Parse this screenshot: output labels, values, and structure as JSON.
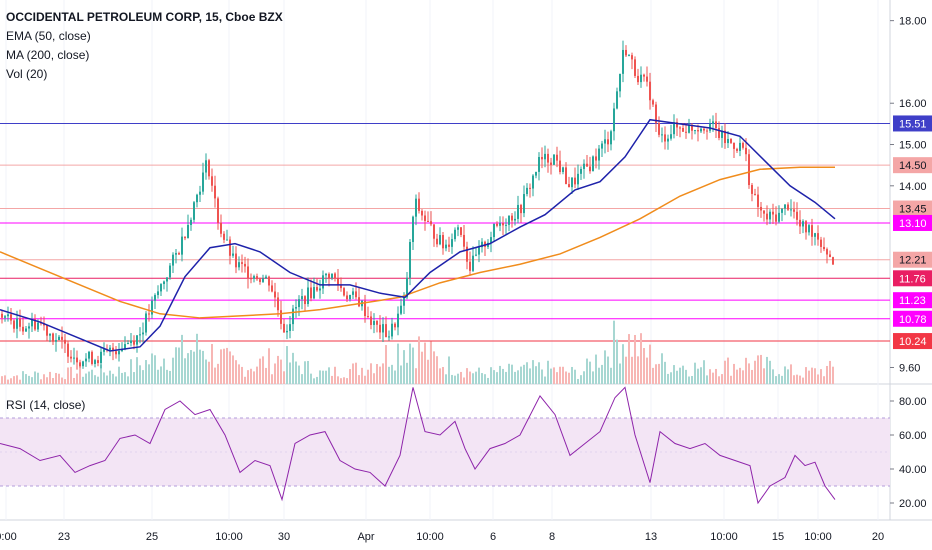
{
  "header": {
    "title": "OCCIDENTAL PETROLEUM CORP, 15, Cboe BZX",
    "indicators": [
      "EMA (50, close)",
      "MA (200, close)",
      "Vol (20)"
    ]
  },
  "rsi": {
    "label": "RSI (14, close)",
    "upper": 70,
    "lower": 30,
    "ticks": [
      "80.00",
      "60.00",
      "40.00",
      "20.00"
    ]
  },
  "colors": {
    "up": "#26a69a",
    "down": "#ef5350",
    "ema": "#1e22aa",
    "ma": "#f08c1c",
    "rsi": "#8e24aa",
    "rsi_band": "#f3e5f5"
  },
  "chart_data": {
    "type": "candlestick",
    "title": "OCCIDENTAL PETROLEUM CORP, 15, Cboe BZX",
    "price_range": [
      9.2,
      18.5
    ],
    "price_ticks": [
      "18.00",
      "16.00",
      "15.00",
      "14.00",
      "9.60"
    ],
    "time_labels": [
      "0:00",
      "23",
      "25",
      "10:00",
      "30",
      "Apr",
      "10:00",
      "6",
      "8",
      "13",
      "10:00",
      "15",
      "10:00",
      "20"
    ],
    "horizontal_lines": [
      {
        "value": 15.51,
        "label": "15.51",
        "color": "#3f3fc8"
      },
      {
        "value": 14.5,
        "label": "14.50",
        "color": "#f4a6a6"
      },
      {
        "value": 13.45,
        "label": "13.45",
        "color": "#f4a6a6"
      },
      {
        "value": 13.1,
        "label": "13.10",
        "color": "#ff00ff"
      },
      {
        "value": 12.21,
        "label": "12.21",
        "color": "#f4a6a6"
      },
      {
        "value": 11.76,
        "label": "11.76",
        "color": "#e91e63"
      },
      {
        "value": 11.23,
        "label": "11.23",
        "color": "#ff00ff"
      },
      {
        "value": 10.78,
        "label": "10.78",
        "color": "#ff00ff"
      },
      {
        "value": 10.24,
        "label": "10.24",
        "color": "#f23645"
      }
    ],
    "price_path": [
      [
        0,
        10.9
      ],
      [
        20,
        10.6
      ],
      [
        40,
        10.7
      ],
      [
        60,
        10.2
      ],
      [
        80,
        9.8
      ],
      [
        100,
        9.85
      ],
      [
        120,
        10.1
      ],
      [
        140,
        10.4
      ],
      [
        160,
        11.5
      ],
      [
        180,
        12.5
      ],
      [
        195,
        13.6
      ],
      [
        208,
        14.6
      ],
      [
        220,
        13.0
      ],
      [
        235,
        12.1
      ],
      [
        250,
        11.9
      ],
      [
        270,
        11.7
      ],
      [
        285,
        10.5
      ],
      [
        300,
        11.2
      ],
      [
        315,
        11.5
      ],
      [
        330,
        11.9
      ],
      [
        345,
        11.4
      ],
      [
        360,
        11.2
      ],
      [
        375,
        10.6
      ],
      [
        390,
        10.4
      ],
      [
        405,
        11.2
      ],
      [
        415,
        13.6
      ],
      [
        430,
        13.0
      ],
      [
        445,
        12.5
      ],
      [
        460,
        13.1
      ],
      [
        470,
        12.0
      ],
      [
        485,
        12.6
      ],
      [
        500,
        13.1
      ],
      [
        520,
        13.4
      ],
      [
        540,
        14.6
      ],
      [
        555,
        14.7
      ],
      [
        570,
        14.0
      ],
      [
        590,
        14.5
      ],
      [
        610,
        15.2
      ],
      [
        625,
        17.4
      ],
      [
        635,
        16.8
      ],
      [
        650,
        16.3
      ],
      [
        660,
        15.1
      ],
      [
        675,
        15.4
      ],
      [
        690,
        15.4
      ],
      [
        710,
        15.5
      ],
      [
        725,
        15.1
      ],
      [
        745,
        14.9
      ],
      [
        752,
        13.8
      ],
      [
        765,
        13.2
      ],
      [
        780,
        13.3
      ],
      [
        790,
        13.6
      ],
      [
        800,
        13.0
      ],
      [
        815,
        12.9
      ],
      [
        833,
        12.2
      ]
    ],
    "ema_50_path": [
      [
        0,
        11.0
      ],
      [
        40,
        10.7
      ],
      [
        80,
        10.3
      ],
      [
        110,
        10.0
      ],
      [
        140,
        10.1
      ],
      [
        160,
        10.6
      ],
      [
        185,
        11.8
      ],
      [
        210,
        12.5
      ],
      [
        235,
        12.6
      ],
      [
        260,
        12.4
      ],
      [
        290,
        11.9
      ],
      [
        320,
        11.6
      ],
      [
        350,
        11.6
      ],
      [
        380,
        11.4
      ],
      [
        405,
        11.3
      ],
      [
        430,
        11.9
      ],
      [
        460,
        12.4
      ],
      [
        490,
        12.6
      ],
      [
        520,
        13.0
      ],
      [
        545,
        13.3
      ],
      [
        575,
        13.9
      ],
      [
        600,
        14.1
      ],
      [
        625,
        14.7
      ],
      [
        650,
        15.6
      ],
      [
        680,
        15.5
      ],
      [
        710,
        15.4
      ],
      [
        740,
        15.2
      ],
      [
        765,
        14.6
      ],
      [
        790,
        14.0
      ],
      [
        815,
        13.6
      ],
      [
        835,
        13.2
      ]
    ],
    "ma_200_path": [
      [
        0,
        12.4
      ],
      [
        40,
        12.0
      ],
      [
        80,
        11.6
      ],
      [
        120,
        11.2
      ],
      [
        160,
        10.9
      ],
      [
        200,
        10.8
      ],
      [
        240,
        10.85
      ],
      [
        280,
        10.9
      ],
      [
        320,
        11.0
      ],
      [
        360,
        11.15
      ],
      [
        400,
        11.3
      ],
      [
        440,
        11.65
      ],
      [
        480,
        11.9
      ],
      [
        520,
        12.1
      ],
      [
        560,
        12.35
      ],
      [
        600,
        12.75
      ],
      [
        640,
        13.2
      ],
      [
        680,
        13.75
      ],
      [
        720,
        14.15
      ],
      [
        760,
        14.4
      ],
      [
        800,
        14.45
      ],
      [
        835,
        14.45
      ]
    ],
    "rsi_path": [
      [
        0,
        55
      ],
      [
        20,
        52
      ],
      [
        40,
        45
      ],
      [
        60,
        48
      ],
      [
        75,
        38
      ],
      [
        90,
        42
      ],
      [
        105,
        45
      ],
      [
        120,
        58
      ],
      [
        135,
        60
      ],
      [
        150,
        55
      ],
      [
        165,
        75
      ],
      [
        180,
        80
      ],
      [
        195,
        72
      ],
      [
        210,
        75
      ],
      [
        225,
        60
      ],
      [
        240,
        38
      ],
      [
        255,
        45
      ],
      [
        270,
        42
      ],
      [
        282,
        22
      ],
      [
        295,
        55
      ],
      [
        310,
        60
      ],
      [
        325,
        62
      ],
      [
        340,
        45
      ],
      [
        355,
        40
      ],
      [
        370,
        38
      ],
      [
        385,
        30
      ],
      [
        400,
        48
      ],
      [
        413,
        88
      ],
      [
        425,
        62
      ],
      [
        440,
        60
      ],
      [
        455,
        68
      ],
      [
        465,
        52
      ],
      [
        475,
        40
      ],
      [
        490,
        52
      ],
      [
        505,
        55
      ],
      [
        520,
        60
      ],
      [
        540,
        83
      ],
      [
        555,
        72
      ],
      [
        570,
        48
      ],
      [
        585,
        55
      ],
      [
        600,
        62
      ],
      [
        615,
        82
      ],
      [
        625,
        88
      ],
      [
        635,
        60
      ],
      [
        650,
        32
      ],
      [
        660,
        62
      ],
      [
        675,
        55
      ],
      [
        690,
        52
      ],
      [
        705,
        55
      ],
      [
        720,
        48
      ],
      [
        735,
        45
      ],
      [
        750,
        42
      ],
      [
        758,
        20
      ],
      [
        770,
        30
      ],
      [
        785,
        35
      ],
      [
        795,
        48
      ],
      [
        805,
        42
      ],
      [
        815,
        44
      ],
      [
        825,
        30
      ],
      [
        835,
        22
      ]
    ],
    "volume_profile": [
      [
        0,
        0.15
      ],
      [
        60,
        0.2
      ],
      [
        120,
        0.25
      ],
      [
        160,
        0.5
      ],
      [
        200,
        0.7
      ],
      [
        240,
        0.3
      ],
      [
        280,
        0.5
      ],
      [
        320,
        0.2
      ],
      [
        360,
        0.3
      ],
      [
        410,
        0.8
      ],
      [
        440,
        0.4
      ],
      [
        480,
        0.2
      ],
      [
        540,
        0.3
      ],
      [
        580,
        0.2
      ],
      [
        620,
        0.9
      ],
      [
        660,
        0.4
      ],
      [
        700,
        0.3
      ],
      [
        750,
        0.4
      ],
      [
        800,
        0.2
      ],
      [
        835,
        0.3
      ]
    ]
  }
}
